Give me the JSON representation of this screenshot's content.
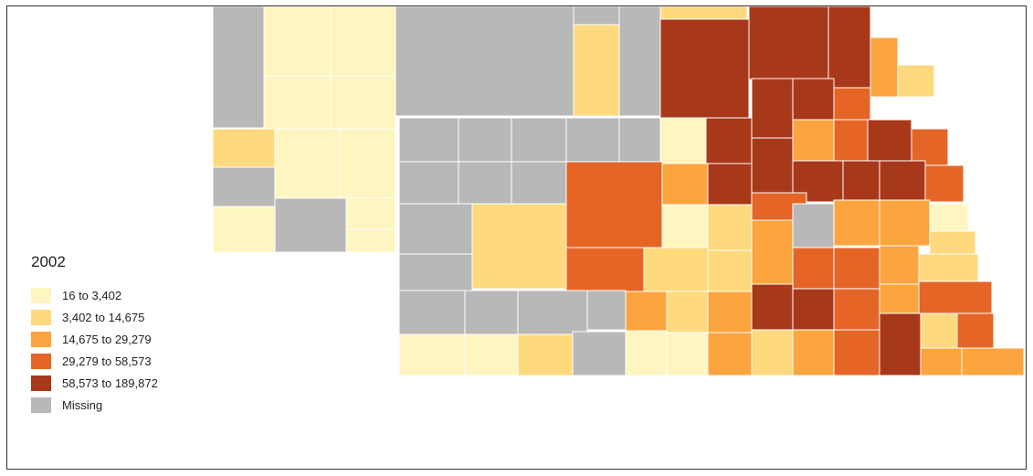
{
  "legend": {
    "title": "2002",
    "items": [
      {
        "label": "16 to 3,402",
        "color": "#fff5c0"
      },
      {
        "label": "3,402 to 14,675",
        "color": "#fed97e"
      },
      {
        "label": "14,675 to 29,279",
        "color": "#fca43d"
      },
      {
        "label": "29,279 to 58,573",
        "color": "#e56527"
      },
      {
        "label": "58,573 to 189,872",
        "color": "#a8381a"
      },
      {
        "label": "Missing",
        "color": "#b8b8b8"
      }
    ]
  },
  "colors": {
    "border": "#ffffff",
    "frame": "#333333"
  },
  "regions": [
    {
      "cls": 5,
      "name": "west-1"
    },
    {
      "cls": 0,
      "name": "west-2"
    },
    {
      "cls": 0,
      "name": "west-3"
    },
    {
      "cls": 0,
      "name": "west-4"
    },
    {
      "cls": 0,
      "name": "west-5"
    },
    {
      "cls": 0,
      "name": "west-6"
    },
    {
      "cls": 1,
      "name": "west-7"
    },
    {
      "cls": 0,
      "name": "west-8"
    },
    {
      "cls": 0,
      "name": "west-9"
    },
    {
      "cls": 5,
      "name": "west-10"
    },
    {
      "cls": 0,
      "name": "west-11"
    },
    {
      "cls": 5,
      "name": "west-12"
    },
    {
      "cls": 0,
      "name": "west-13"
    },
    {
      "cls": 5,
      "name": "north-1"
    },
    {
      "cls": 5,
      "name": "north-2"
    },
    {
      "cls": 1,
      "name": "north-3"
    },
    {
      "cls": 5,
      "name": "north-4"
    },
    {
      "cls": 1,
      "name": "north-5"
    },
    {
      "cls": 4,
      "name": "north-6"
    },
    {
      "cls": 4,
      "name": "north-7"
    },
    {
      "cls": 4,
      "name": "north-8"
    },
    {
      "cls": 2,
      "name": "north-9"
    },
    {
      "cls": 1,
      "name": "north-10"
    }
  ]
}
